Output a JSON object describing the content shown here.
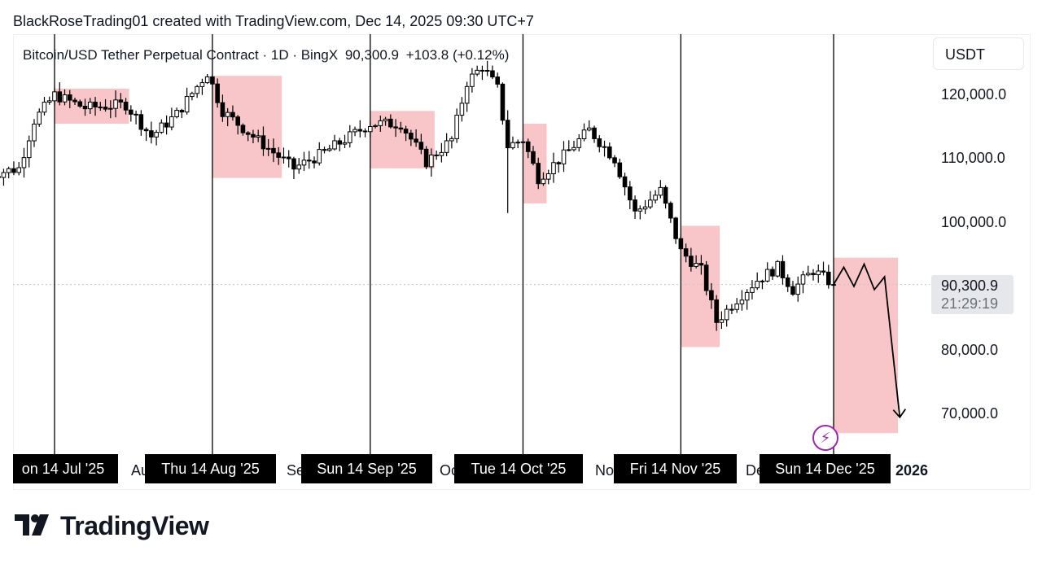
{
  "header": {
    "text": "BlackRoseTrading01 created with TradingView.com, Dec 14, 2025 09:30 UTC+7"
  },
  "legend": {
    "symbol": "Bitcoin/USD Tether Perpetual Contract · 1D · BingX",
    "price": "90,300.9",
    "change": "+103.8 (+0.12%)"
  },
  "unit": "USDT",
  "current_price": {
    "value": "90,300.9",
    "countdown": "21:29:19"
  },
  "date_markers": [
    "on 14 Jul '25",
    "Thu 14 Aug '25",
    "Sun 14 Sep '25",
    "Tue 14 Oct '25",
    "Fri 14 Nov '25",
    "Sun 14 Dec '25"
  ],
  "partial_month_labels": [
    "Au",
    "Se",
    "Oc",
    "No",
    "De"
  ],
  "year_label": "2026",
  "brand": {
    "name": "TradingView"
  },
  "colors": {
    "zone": "#f8c6c9",
    "candle_up": "#ffffff",
    "candle_down": "#000000",
    "line": "#000000",
    "bolt": "#9c27b0"
  },
  "icons": {
    "alert": "lightning-bolt-icon",
    "logo": "tradingview-logo-icon"
  },
  "chart_data": {
    "type": "candlestick",
    "title": "Bitcoin/USD Tether Perpetual Contract · 1D · BingX",
    "ylabel": "USDT",
    "ylim": [
      63000,
      129000
    ],
    "y_ticks": [
      {
        "value": 120000,
        "label": "120,000.0"
      },
      {
        "value": 110000,
        "label": "110,000.0"
      },
      {
        "value": 100000,
        "label": "100,000.0"
      },
      {
        "value": 80000,
        "label": "80,000.0"
      },
      {
        "value": 70000,
        "label": "70,000.0"
      }
    ],
    "vertical_markers": [
      "2025-07-14",
      "2025-08-14",
      "2025-09-14",
      "2025-10-14",
      "2025-11-14",
      "2025-12-14"
    ],
    "close_path": [
      [
        "2025-07-01",
        107500
      ],
      [
        "2025-07-07",
        108500
      ],
      [
        "2025-07-10",
        116000
      ],
      [
        "2025-07-14",
        120000
      ],
      [
        "2025-07-20",
        118000
      ],
      [
        "2025-07-28",
        118500
      ],
      [
        "2025-08-02",
        113500
      ],
      [
        "2025-08-07",
        117000
      ],
      [
        "2025-08-13",
        123500
      ],
      [
        "2025-08-16",
        117500
      ],
      [
        "2025-08-22",
        113500
      ],
      [
        "2025-08-30",
        108500
      ],
      [
        "2025-09-05",
        111000
      ],
      [
        "2025-09-14",
        115500
      ],
      [
        "2025-09-20",
        115500
      ],
      [
        "2025-09-25",
        109500
      ],
      [
        "2025-09-30",
        113000
      ],
      [
        "2025-10-03",
        122000
      ],
      [
        "2025-10-06",
        124500
      ],
      [
        "2025-10-09",
        121000
      ],
      [
        "2025-10-11",
        112000
      ],
      [
        "2025-10-14",
        113000
      ],
      [
        "2025-10-17",
        107000
      ],
      [
        "2025-10-22",
        110500
      ],
      [
        "2025-10-27",
        114500
      ],
      [
        "2025-11-01",
        110000
      ],
      [
        "2025-11-05",
        101500
      ],
      [
        "2025-11-10",
        105000
      ],
      [
        "2025-11-14",
        95500
      ],
      [
        "2025-11-18",
        92500
      ],
      [
        "2025-11-21",
        84500
      ],
      [
        "2025-11-25",
        88000
      ],
      [
        "2025-11-29",
        91000
      ],
      [
        "2025-12-03",
        93000
      ],
      [
        "2025-12-06",
        89500
      ],
      [
        "2025-12-10",
        92500
      ],
      [
        "2025-12-14",
        90300.9
      ]
    ],
    "shaded_zones": [
      {
        "start": "2025-07-14",
        "end": "2025-07-28",
        "high": 121000,
        "low": 115500
      },
      {
        "start": "2025-08-14",
        "end": "2025-08-27",
        "high": 123000,
        "low": 107000
      },
      {
        "start": "2025-09-14",
        "end": "2025-09-26",
        "high": 117500,
        "low": 108500
      },
      {
        "start": "2025-10-14",
        "end": "2025-10-18",
        "high": 115500,
        "low": 103000
      },
      {
        "start": "2025-11-14",
        "end": "2025-11-21",
        "high": 99500,
        "low": 80500
      },
      {
        "start": "2025-12-14",
        "end": "2025-12-26",
        "high": 94500,
        "low": 67000
      }
    ],
    "projection": [
      [
        "2025-12-14",
        90300
      ],
      [
        "2025-12-16",
        93000
      ],
      [
        "2025-12-18",
        90000
      ],
      [
        "2025-12-20",
        93500
      ],
      [
        "2025-12-22",
        89500
      ],
      [
        "2025-12-24",
        91500
      ],
      [
        "2025-12-27",
        69500
      ]
    ]
  }
}
